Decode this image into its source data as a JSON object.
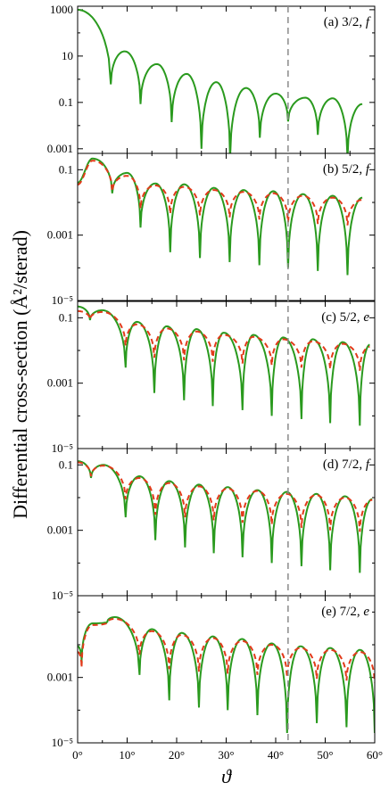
{
  "chart_data": {
    "type": "line",
    "ylabel": "Differential cross-section (Å²/sterad)",
    "xlabel": "ϑ",
    "xlim": [
      0,
      60
    ],
    "x_ticks": [
      0,
      10,
      20,
      30,
      40,
      50,
      60
    ],
    "x_tick_labels": [
      "0°",
      "10°",
      "20°",
      "30°",
      "40°",
      "50°",
      "60°"
    ],
    "y_scale": "log",
    "vertical_marker_x": 42.5,
    "colors": {
      "green": "#2a9a1e",
      "red": "#e23a1a",
      "marker": "#8a8a8a"
    },
    "panels": [
      {
        "label": "(a) 3/2, f",
        "ylim_log10": [
          -3.2,
          3.15
        ],
        "y_ticks_log10": [
          -3,
          -1,
          1,
          3
        ],
        "y_tick_labels": [
          "0.001",
          "0.1",
          "10",
          "1000"
        ],
        "green_peaks": [
          [
            0,
            1000
          ],
          [
            9.5,
            16
          ],
          [
            16,
            4.5
          ],
          [
            22,
            1.7
          ],
          [
            28,
            0.75
          ],
          [
            34,
            0.42
          ],
          [
            40,
            0.24
          ],
          [
            46,
            0.16
          ],
          [
            51.5,
            0.15
          ],
          [
            57.5,
            0.085
          ]
        ],
        "green_minima": [
          [
            6.7,
            0.6
          ],
          [
            12.7,
            0.085
          ],
          [
            19,
            0.014
          ],
          [
            25,
            0.001
          ],
          [
            30.8,
            0.0004
          ],
          [
            36.8,
            0.003
          ],
          [
            42.5,
            0.015
          ],
          [
            48.5,
            0.004
          ],
          [
            54.5,
            0.0004
          ]
        ],
        "red_peaks": [],
        "red_minima": []
      },
      {
        "label": "(b) 5/2, f",
        "ylim_log10": [
          -5,
          -0.5
        ],
        "y_ticks_log10": [
          -5,
          -3,
          -1
        ],
        "y_tick_labels": [
          "10⁻⁵",
          "0.001",
          "0.1"
        ],
        "green_peaks": [
          [
            0,
            0.04
          ],
          [
            3,
            0.22
          ],
          [
            10,
            0.08
          ],
          [
            15.7,
            0.038
          ],
          [
            21.5,
            0.036
          ],
          [
            27.5,
            0.028
          ],
          [
            33.5,
            0.024
          ],
          [
            39.5,
            0.022
          ],
          [
            45.5,
            0.018
          ],
          [
            51.5,
            0.016
          ],
          [
            57.5,
            0.014
          ]
        ],
        "green_minima": [
          [
            7,
            0.019
          ],
          [
            12.7,
            0.0017
          ],
          [
            18.7,
            0.0003
          ],
          [
            24.7,
            0.0002
          ],
          [
            30.7,
            0.00015
          ],
          [
            36.7,
            0.00012
          ],
          [
            42.5,
            0.0001
          ],
          [
            48.5,
            8e-05
          ],
          [
            54.5,
            6e-05
          ]
        ],
        "red_peaks": [
          [
            0,
            0.035
          ],
          [
            3,
            0.19
          ],
          [
            10,
            0.065
          ],
          [
            15.7,
            0.033
          ],
          [
            21.5,
            0.03
          ],
          [
            27.5,
            0.024
          ],
          [
            33.5,
            0.021
          ],
          [
            39.5,
            0.019
          ],
          [
            45.5,
            0.016
          ],
          [
            51.5,
            0.014
          ],
          [
            57.5,
            0.012
          ]
        ],
        "red_minima": [
          [
            7,
            0.022
          ],
          [
            12.7,
            0.0065
          ],
          [
            18.7,
            0.0045
          ],
          [
            24.7,
            0.004
          ],
          [
            30.7,
            0.0035
          ],
          [
            36.7,
            0.003
          ],
          [
            42.5,
            0.0025
          ],
          [
            48.5,
            0.0022
          ],
          [
            54.5,
            0.002
          ]
        ]
      },
      {
        "label": "(c) 5/2, e",
        "ylim_log10": [
          -5,
          -0.5
        ],
        "y_ticks_log10": [
          -5,
          -3,
          -1
        ],
        "y_tick_labels": [
          "10⁻⁵",
          "0.001",
          "0.1"
        ],
        "green_peaks": [
          [
            0,
            0.22
          ],
          [
            5,
            0.17
          ],
          [
            12,
            0.075
          ],
          [
            18,
            0.055
          ],
          [
            24,
            0.045
          ],
          [
            29.5,
            0.035
          ],
          [
            35.5,
            0.03
          ],
          [
            41.5,
            0.025
          ],
          [
            47.5,
            0.022
          ],
          [
            53.5,
            0.018
          ],
          [
            59,
            0.015
          ]
        ],
        "green_minima": [
          [
            2.5,
            0.085
          ],
          [
            9.7,
            0.003
          ],
          [
            15.5,
            0.0005
          ],
          [
            21.5,
            0.0003
          ],
          [
            27.3,
            0.0002
          ],
          [
            33.3,
            0.00015
          ],
          [
            39.2,
            0.0001
          ],
          [
            45.2,
            8e-05
          ],
          [
            51,
            6e-05
          ],
          [
            57,
            5e-05
          ]
        ],
        "red_peaks": [
          [
            0,
            0.16
          ],
          [
            5,
            0.15
          ],
          [
            12,
            0.063
          ],
          [
            18,
            0.047
          ],
          [
            24,
            0.038
          ],
          [
            29.5,
            0.03
          ],
          [
            35.5,
            0.026
          ],
          [
            41.5,
            0.022
          ],
          [
            47.5,
            0.019
          ],
          [
            53.5,
            0.016
          ],
          [
            59,
            0.013
          ]
        ],
        "red_minima": [
          [
            2.5,
            0.09
          ],
          [
            9.7,
            0.014
          ],
          [
            15.5,
            0.006
          ],
          [
            21.5,
            0.005
          ],
          [
            27.3,
            0.0045
          ],
          [
            33.3,
            0.004
          ],
          [
            39.2,
            0.0035
          ],
          [
            45.2,
            0.003
          ],
          [
            51,
            0.0027
          ],
          [
            57,
            0.0024
          ]
        ]
      },
      {
        "label": "(d) 7/2, f",
        "ylim_log10": [
          -5,
          -0.5
        ],
        "y_ticks_log10": [
          -5,
          -3,
          -1
        ],
        "y_tick_labels": [
          "10⁻⁵",
          "0.001",
          "0.1"
        ],
        "green_peaks": [
          [
            0,
            0.13
          ],
          [
            5.2,
            0.1
          ],
          [
            12.5,
            0.045
          ],
          [
            18.5,
            0.032
          ],
          [
            24.5,
            0.025
          ],
          [
            30.3,
            0.021
          ],
          [
            36.3,
            0.017
          ],
          [
            42.2,
            0.015
          ],
          [
            48.2,
            0.013
          ],
          [
            54,
            0.011
          ],
          [
            59.5,
            0.009
          ]
        ],
        "green_minima": [
          [
            2.7,
            0.04
          ],
          [
            9.7,
            0.0025
          ],
          [
            15.7,
            0.0005
          ],
          [
            21.7,
            0.0003
          ],
          [
            27.5,
            0.0002
          ],
          [
            33.3,
            0.00015
          ],
          [
            39.2,
            0.0001
          ],
          [
            45.2,
            8e-05
          ],
          [
            51,
            6e-05
          ],
          [
            57,
            5e-05
          ]
        ],
        "red_peaks": [
          [
            0,
            0.12
          ],
          [
            5.2,
            0.095
          ],
          [
            12.5,
            0.04
          ],
          [
            18.5,
            0.028
          ],
          [
            24.5,
            0.022
          ],
          [
            30.3,
            0.019
          ],
          [
            36.3,
            0.016
          ],
          [
            42.2,
            0.013
          ],
          [
            48.2,
            0.012
          ],
          [
            54,
            0.01
          ],
          [
            59.5,
            0.0085
          ]
        ],
        "red_minima": [
          [
            2.7,
            0.045
          ],
          [
            9.7,
            0.009
          ],
          [
            15.7,
            0.003
          ],
          [
            21.7,
            0.0025
          ],
          [
            27.5,
            0.002
          ],
          [
            33.3,
            0.0017
          ],
          [
            39.2,
            0.0015
          ],
          [
            45.2,
            0.0012
          ],
          [
            51,
            0.001
          ],
          [
            57,
            0.0009
          ]
        ]
      },
      {
        "label": "(e) 7/2, e",
        "ylim_log10": [
          -5,
          -0.5
        ],
        "y_ticks_log10": [
          -5,
          -3
        ],
        "y_tick_labels": [
          "10⁻⁵",
          "0.001"
        ],
        "green_peaks": [
          [
            0,
            0.009
          ],
          [
            3,
            0.045
          ],
          [
            7.5,
            0.07
          ],
          [
            15,
            0.03
          ],
          [
            21,
            0.023
          ],
          [
            27.3,
            0.018
          ],
          [
            33.2,
            0.015
          ],
          [
            39.2,
            0.011
          ],
          [
            45,
            0.009
          ],
          [
            51,
            0.008
          ],
          [
            57,
            0.007
          ]
        ],
        "green_minima": [
          [
            0.8,
            0.003
          ],
          [
            6,
            0.05
          ],
          [
            12.5,
            0.0012
          ],
          [
            18.5,
            0.0002
          ],
          [
            24.5,
            0.00012
          ],
          [
            30.3,
            0.0001
          ],
          [
            36.3,
            7e-05
          ],
          [
            42.3,
            2e-05
          ],
          [
            48.3,
            4e-05
          ],
          [
            54.3,
            3e-05
          ],
          [
            60,
            2e-05
          ]
        ],
        "red_peaks": [
          [
            0,
            0.006
          ],
          [
            3,
            0.04
          ],
          [
            7.5,
            0.062
          ],
          [
            15,
            0.026
          ],
          [
            21,
            0.02
          ],
          [
            27.3,
            0.016
          ],
          [
            33.2,
            0.013
          ],
          [
            39.2,
            0.01
          ],
          [
            45,
            0.008
          ],
          [
            51,
            0.007
          ],
          [
            57,
            0.006
          ]
        ],
        "red_minima": [
          [
            0.8,
            0.002
          ],
          [
            6,
            0.048
          ],
          [
            12.5,
            0.005
          ],
          [
            18.5,
            0.0018
          ],
          [
            24.5,
            0.0015
          ],
          [
            30.3,
            0.0013
          ],
          [
            36.3,
            0.0012
          ],
          [
            42.3,
            0.001
          ],
          [
            48.3,
            0.0009
          ],
          [
            54.3,
            0.0008
          ],
          [
            60,
            0.0007
          ]
        ]
      }
    ]
  }
}
